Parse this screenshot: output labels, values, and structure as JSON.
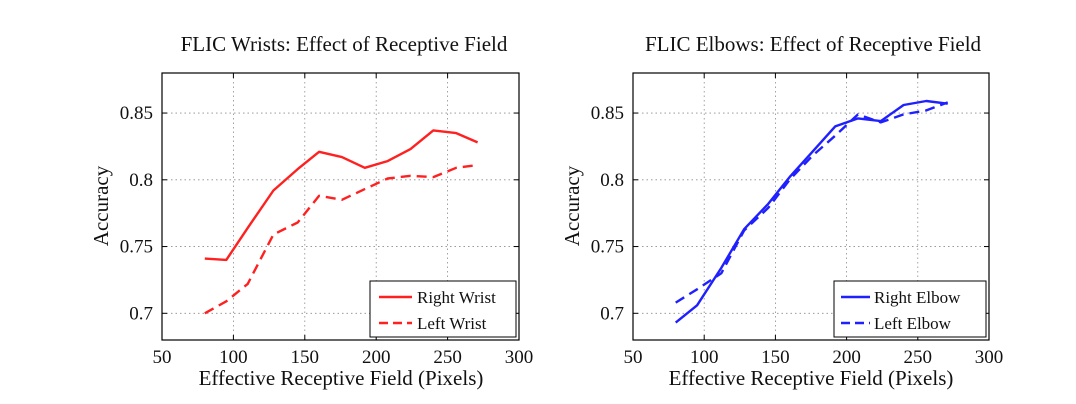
{
  "chart_data": [
    {
      "type": "line",
      "title": "FLIC Wrists: Effect of Receptive Field",
      "xlabel": "Effective Receptive Field (Pixels)",
      "ylabel": "Accuracy",
      "xlim": [
        50,
        300
      ],
      "ylim": [
        0.68,
        0.88
      ],
      "xticks": [
        50,
        100,
        150,
        200,
        250,
        300
      ],
      "yticks": [
        0.7,
        0.75,
        0.8,
        0.85
      ],
      "ytick_labels": [
        "0.7",
        "0.75",
        "0.8",
        "0.85"
      ],
      "grid": true,
      "legend_position": "bottom-right",
      "series": [
        {
          "name": "Right Wrist",
          "color": "#ff2020",
          "style": "solid",
          "x": [
            80,
            95,
            110,
            128,
            145,
            160,
            176,
            192,
            208,
            224,
            240,
            256,
            271
          ],
          "y": [
            0.741,
            0.74,
            0.764,
            0.792,
            0.808,
            0.821,
            0.817,
            0.809,
            0.814,
            0.823,
            0.837,
            0.835,
            0.828
          ]
        },
        {
          "name": "Left Wrist",
          "color": "#ff2020",
          "style": "dashed",
          "x": [
            80,
            95,
            110,
            128,
            145,
            160,
            176,
            192,
            208,
            224,
            240,
            256,
            271
          ],
          "y": [
            0.7,
            0.709,
            0.722,
            0.759,
            0.768,
            0.788,
            0.785,
            0.793,
            0.801,
            0.803,
            0.802,
            0.809,
            0.811
          ]
        }
      ]
    },
    {
      "type": "line",
      "title": "FLIC Elbows: Effect of Receptive Field",
      "xlabel": "Effective Receptive Field (Pixels)",
      "ylabel": "Accuracy",
      "xlim": [
        50,
        300
      ],
      "ylim": [
        0.68,
        0.88
      ],
      "xticks": [
        50,
        100,
        150,
        200,
        250,
        300
      ],
      "yticks": [
        0.7,
        0.75,
        0.8,
        0.85
      ],
      "ytick_labels": [
        "0.7",
        "0.75",
        "0.8",
        "0.85"
      ],
      "grid": true,
      "legend_position": "bottom-right",
      "series": [
        {
          "name": "Right Elbow",
          "color": "#2020ff",
          "style": "solid",
          "x": [
            80,
            95,
            112,
            128,
            145,
            160,
            176,
            192,
            208,
            224,
            240,
            256,
            271
          ],
          "y": [
            0.693,
            0.706,
            0.734,
            0.763,
            0.782,
            0.802,
            0.821,
            0.84,
            0.846,
            0.844,
            0.856,
            0.859,
            0.857
          ]
        },
        {
          "name": "Left Elbow",
          "color": "#2020ff",
          "style": "dashed",
          "x": [
            80,
            95,
            112,
            128,
            145,
            160,
            176,
            192,
            208,
            224,
            240,
            256,
            271
          ],
          "y": [
            0.708,
            0.718,
            0.73,
            0.762,
            0.779,
            0.8,
            0.818,
            0.833,
            0.849,
            0.843,
            0.849,
            0.852,
            0.858
          ]
        }
      ]
    }
  ]
}
